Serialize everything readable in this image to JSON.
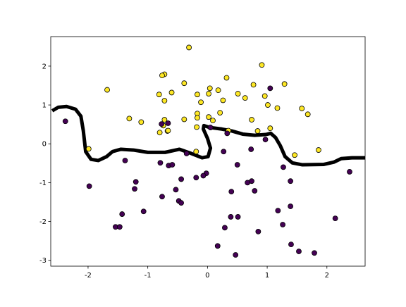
{
  "chart_data": {
    "type": "scatter",
    "xlim": [
      -2.625,
      2.64
    ],
    "ylim": [
      -3.15,
      2.76
    ],
    "xticks": [
      -2,
      -1,
      0,
      1,
      2
    ],
    "yticks": [
      -3,
      -2,
      -1,
      0,
      1,
      2
    ],
    "series": [
      {
        "color": "#fde725",
        "x": [
          -0.31,
          0.91,
          -1.68,
          -0.72,
          -0.76,
          -0.39,
          0.32,
          0.04,
          0.18,
          0.77,
          1.29,
          -0.6,
          -0.81,
          -0.17,
          0.02,
          0.51,
          0.96,
          0.63,
          -0.72,
          0.26,
          -0.11,
          1.01,
          1.17,
          1.58,
          1.68,
          0.21,
          -0.17,
          0.02,
          -0.17,
          -1.31,
          -1.11,
          -0.39,
          -0.72,
          0.09,
          0.74,
          -0.74,
          -0.18,
          -0.67,
          -0.66,
          -0.8,
          0.35,
          0.84,
          1.05,
          -1.99,
          -0.19,
          1.46,
          1.86
        ],
        "values": [
          2.48,
          2.03,
          1.39,
          1.79,
          1.76,
          1.56,
          1.7,
          1.43,
          1.38,
          1.52,
          1.54,
          1.32,
          1.27,
          1.27,
          1.29,
          1.29,
          1.23,
          1.18,
          1.11,
          1.12,
          1.07,
          1.0,
          0.92,
          0.91,
          0.76,
          0.8,
          0.78,
          0.69,
          0.67,
          0.65,
          0.56,
          0.63,
          0.62,
          0.6,
          0.62,
          0.47,
          0.43,
          0.33,
          0.34,
          0.29,
          0.34,
          0.33,
          0.4,
          -0.13,
          -0.2,
          -0.29,
          -0.16
        ]
      },
      {
        "color": "#440154",
        "x": [
          -2.38,
          -0.77,
          -0.66,
          0.05,
          0.33,
          1.05,
          0.97,
          0.73,
          0.27,
          -0.35,
          -1.38,
          -0.79,
          -0.65,
          -0.59,
          0.5,
          1.27,
          -0.02,
          -0.07,
          -0.19,
          -1.2,
          -0.44,
          0.67,
          0.74,
          1.39,
          2.38,
          -1.98,
          -1.22,
          -0.53,
          0.4,
          0.79,
          -0.76,
          -0.48,
          -0.44,
          -1.07,
          1.18,
          -1.43,
          0.39,
          0.51,
          1.39,
          2.14,
          -1.54,
          -1.47,
          0.29,
          1.26,
          0.85,
          0.17,
          1.4,
          1.53,
          1.79,
          0.47
        ],
        "values": [
          0.58,
          0.51,
          0.53,
          0.42,
          0.27,
          1.43,
          0.11,
          -0.14,
          -0.2,
          -0.25,
          -0.43,
          -0.49,
          -0.56,
          -0.54,
          -0.54,
          -0.6,
          -0.76,
          -0.82,
          -0.87,
          -0.98,
          -0.91,
          -1.0,
          -0.96,
          -0.96,
          -0.72,
          -1.09,
          -1.16,
          -1.18,
          -1.23,
          -1.21,
          -1.36,
          -1.47,
          -1.52,
          -1.74,
          -1.72,
          -1.81,
          -1.88,
          -1.88,
          -1.61,
          -1.92,
          -2.14,
          -2.14,
          -2.16,
          -2.08,
          -2.26,
          -2.63,
          -2.59,
          -2.77,
          -2.81,
          -2.86
        ]
      }
    ],
    "boundary": {
      "color": "#000000",
      "x": [
        -2.6,
        -2.5,
        -2.36,
        -2.21,
        -2.12,
        -2.08,
        -2.04,
        -1.95,
        -1.83,
        -1.69,
        -1.59,
        -1.45,
        -1.24,
        -1.0,
        -0.71,
        -0.47,
        -0.27,
        -0.09,
        0.01,
        0.05,
        0.0,
        -0.07,
        -0.06,
        0.04,
        0.24,
        0.41,
        0.59,
        0.79,
        0.98,
        1.06,
        1.14,
        1.22,
        1.3,
        1.42,
        1.59,
        1.95,
        2.12,
        2.24,
        2.42,
        2.54,
        2.7
      ],
      "values": [
        0.85,
        0.94,
        0.96,
        0.89,
        0.71,
        0.34,
        -0.2,
        -0.4,
        -0.43,
        -0.33,
        -0.2,
        -0.14,
        -0.16,
        -0.22,
        -0.22,
        -0.14,
        -0.25,
        -0.36,
        -0.33,
        -0.11,
        0.14,
        0.38,
        0.47,
        0.42,
        0.38,
        0.33,
        0.25,
        0.22,
        0.24,
        0.27,
        0.16,
        -0.05,
        -0.33,
        -0.49,
        -0.54,
        -0.53,
        -0.47,
        -0.38,
        -0.36,
        -0.36,
        -0.36
      ]
    }
  }
}
